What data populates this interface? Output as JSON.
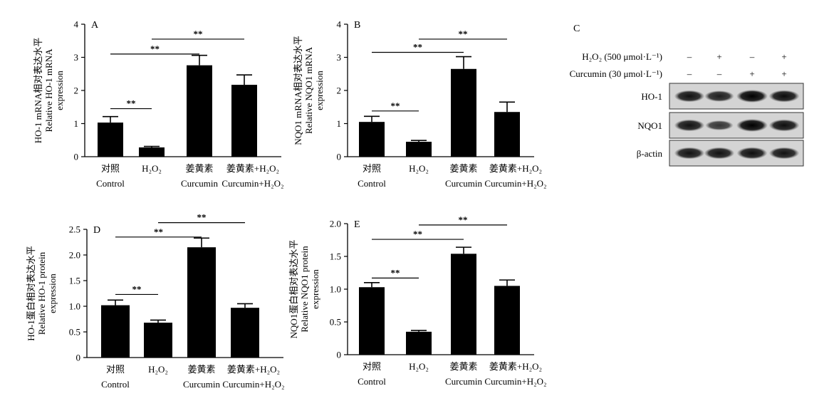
{
  "chart_data": [
    {
      "id": "A",
      "type": "bar",
      "panel_label": "A",
      "ylabel_lines": [
        "HO-1 mRNA相对表达水平",
        "Relative HO-1 mRNA",
        "expression"
      ],
      "ylim": [
        0,
        4
      ],
      "yticks": [
        "0",
        "1",
        "2",
        "3",
        "4"
      ],
      "categories": [
        {
          "zh": "对照",
          "en": "Control"
        },
        {
          "zh": "H₂O₂",
          "en": ""
        },
        {
          "zh": "姜黄素",
          "en": "Curcumin"
        },
        {
          "zh": "姜黄素+H₂O₂",
          "en": "Curcumin+H₂O₂"
        }
      ],
      "values": [
        1.03,
        0.28,
        2.76,
        2.17
      ],
      "errors": [
        0.18,
        0.03,
        0.3,
        0.3
      ],
      "comparisons": [
        {
          "from": 0,
          "to": 1,
          "y": 1.45,
          "label": "**"
        },
        {
          "from": 0,
          "to": 2,
          "y": 3.1,
          "label": "**"
        },
        {
          "from": 1,
          "to": 3,
          "y": 3.55,
          "label": "**"
        }
      ]
    },
    {
      "id": "B",
      "type": "bar",
      "panel_label": "B",
      "ylabel_lines": [
        "NQO1 mRNA相对表达水平",
        "Relative NQO1 mRNA",
        "expression"
      ],
      "ylim": [
        0,
        4
      ],
      "yticks": [
        "0",
        "1",
        "2",
        "3",
        "4"
      ],
      "categories": [
        {
          "zh": "对照",
          "en": "Control"
        },
        {
          "zh": "H₂O₂",
          "en": ""
        },
        {
          "zh": "姜黄素",
          "en": "Curcumin"
        },
        {
          "zh": "姜黄素+H₂O₂",
          "en": "Curcumin+H₂O₂"
        }
      ],
      "values": [
        1.05,
        0.45,
        2.65,
        1.35
      ],
      "errors": [
        0.17,
        0.04,
        0.37,
        0.3
      ],
      "comparisons": [
        {
          "from": 0,
          "to": 1,
          "y": 1.38,
          "label": "**"
        },
        {
          "from": 0,
          "to": 2,
          "y": 3.15,
          "label": "**"
        },
        {
          "from": 1,
          "to": 3,
          "y": 3.55,
          "label": "**"
        }
      ]
    },
    {
      "id": "D",
      "type": "bar",
      "panel_label": "D",
      "ylabel_lines": [
        "HO-1蛋白相对表达水平",
        "Relative HO-1 protein",
        "expression"
      ],
      "ylim": [
        0,
        2.5
      ],
      "yticks": [
        "0",
        "0.5",
        "1.0",
        "1.5",
        "2.0",
        "2.5"
      ],
      "categories": [
        {
          "zh": "对照",
          "en": "Control"
        },
        {
          "zh": "H₂O₂",
          "en": ""
        },
        {
          "zh": "姜黄素",
          "en": "Curcumin"
        },
        {
          "zh": "姜黄素+H₂O₂",
          "en": "Curcumin+H₂O₂"
        }
      ],
      "values": [
        1.02,
        0.68,
        2.15,
        0.97
      ],
      "errors": [
        0.1,
        0.05,
        0.18,
        0.08
      ],
      "comparisons": [
        {
          "from": 0,
          "to": 1,
          "y": 1.23,
          "label": "**"
        },
        {
          "from": 0,
          "to": 2,
          "y": 2.35,
          "label": "**"
        },
        {
          "from": 1,
          "to": 3,
          "y": 2.63,
          "label": "**"
        }
      ]
    },
    {
      "id": "E",
      "type": "bar",
      "panel_label": "E",
      "ylabel_lines": [
        "NQO1蛋白相对表达水平",
        "Relative NQO1 protein",
        "expression"
      ],
      "ylim": [
        0,
        2.0
      ],
      "yticks": [
        "0",
        "0.5",
        "1.0",
        "1.5",
        "2.0"
      ],
      "categories": [
        {
          "zh": "对照",
          "en": "Control"
        },
        {
          "zh": "H₂O₂",
          "en": ""
        },
        {
          "zh": "姜黄素",
          "en": "Curcumin"
        },
        {
          "zh": "姜黄素+H₂O₂",
          "en": "Curcumin+H₂O₂"
        }
      ],
      "values": [
        1.03,
        0.35,
        1.54,
        1.05
      ],
      "errors": [
        0.07,
        0.02,
        0.1,
        0.09
      ],
      "comparisons": [
        {
          "from": 0,
          "to": 1,
          "y": 1.17,
          "label": "**"
        },
        {
          "from": 0,
          "to": 2,
          "y": 1.76,
          "label": "**"
        },
        {
          "from": 1,
          "to": 3,
          "y": 1.98,
          "label": "**"
        }
      ]
    }
  ],
  "blot": {
    "panel_label": "C",
    "conditions": [
      {
        "label": "H₂O₂ (500 μmol·L⁻¹)",
        "signs": [
          "–",
          "+",
          "–",
          "+"
        ]
      },
      {
        "label": "Curcumin (30 μmol·L⁻¹)",
        "signs": [
          "–",
          "–",
          "+",
          "+"
        ]
      }
    ],
    "rows": [
      {
        "label": "HO-1",
        "intensity": [
          0.85,
          0.75,
          1.0,
          0.9
        ]
      },
      {
        "label": "NQO1",
        "intensity": [
          0.85,
          0.55,
          1.0,
          0.88
        ]
      },
      {
        "label": "β-actin",
        "intensity": [
          0.85,
          0.85,
          0.88,
          0.85
        ]
      }
    ]
  }
}
